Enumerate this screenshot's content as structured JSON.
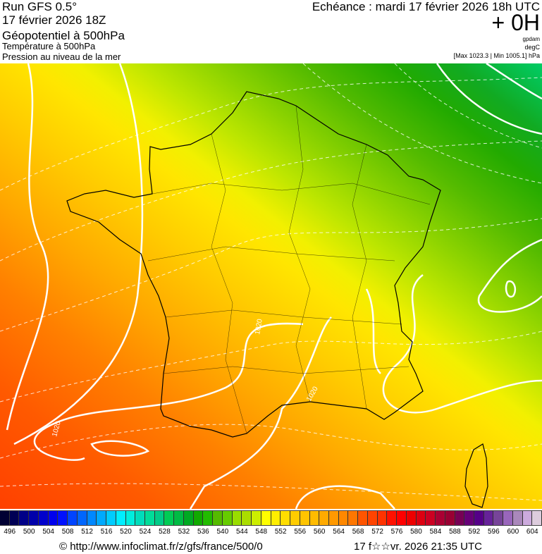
{
  "header": {
    "run": "Run GFS 0.5°",
    "run_date": "17 février 2026 18Z",
    "field_main": "Géopotentiel à 500hPa",
    "field_temp": "Température à 500hPa",
    "field_pressure": "Pression au niveau de la mer",
    "echeance": "Echéance : mardi 17 février 2026 18h UTC",
    "offset": "+ 0H",
    "unit_geo": "gpdam",
    "unit_temp": "degC",
    "pressure_range": "[Max 1023.3 | Min 1005.1] hPa"
  },
  "map": {
    "region": "France",
    "contour_labels": [
      "1020",
      "1020",
      "1020"
    ],
    "contour_color": "#ffffff"
  },
  "legend": {
    "ticks": [
      "496",
      "500",
      "504",
      "508",
      "512",
      "516",
      "520",
      "524",
      "528",
      "532",
      "536",
      "540",
      "544",
      "548",
      "552",
      "556",
      "560",
      "564",
      "568",
      "572",
      "576",
      "580",
      "584",
      "588",
      "592",
      "596",
      "600",
      "604"
    ],
    "colors": [
      "#000033",
      "#000055",
      "#000088",
      "#0000aa",
      "#0000cc",
      "#0000ee",
      "#0011ff",
      "#0044ff",
      "#0066ff",
      "#0088ff",
      "#00aaff",
      "#00ccff",
      "#00eeff",
      "#00eedd",
      "#00ddbb",
      "#00dd99",
      "#00cc88",
      "#00cc55",
      "#00bb44",
      "#00aa22",
      "#11aa00",
      "#22bb00",
      "#55bb00",
      "#66cc00",
      "#99dd00",
      "#aadd00",
      "#ccee00",
      "#ffff00",
      "#ffee00",
      "#ffdd00",
      "#ffcc00",
      "#ffc400",
      "#ffbb00",
      "#ffaa00",
      "#ff9900",
      "#ff8800",
      "#ff7700",
      "#ff5500",
      "#ff4400",
      "#ff3300",
      "#ff1100",
      "#ff0000",
      "#ee0000",
      "#dd0011",
      "#cc0022",
      "#aa0033",
      "#990033",
      "#770055",
      "#660077",
      "#550088",
      "#662299",
      "#774499",
      "#9966bb",
      "#aa88bb",
      "#ccaadd",
      "#ddccdd"
    ]
  },
  "footer": {
    "source": "© http://www.infoclimat.fr/z/gfs/france/500/0",
    "generated": "17 f☆☆vr. 2026 21:35 UTC"
  }
}
